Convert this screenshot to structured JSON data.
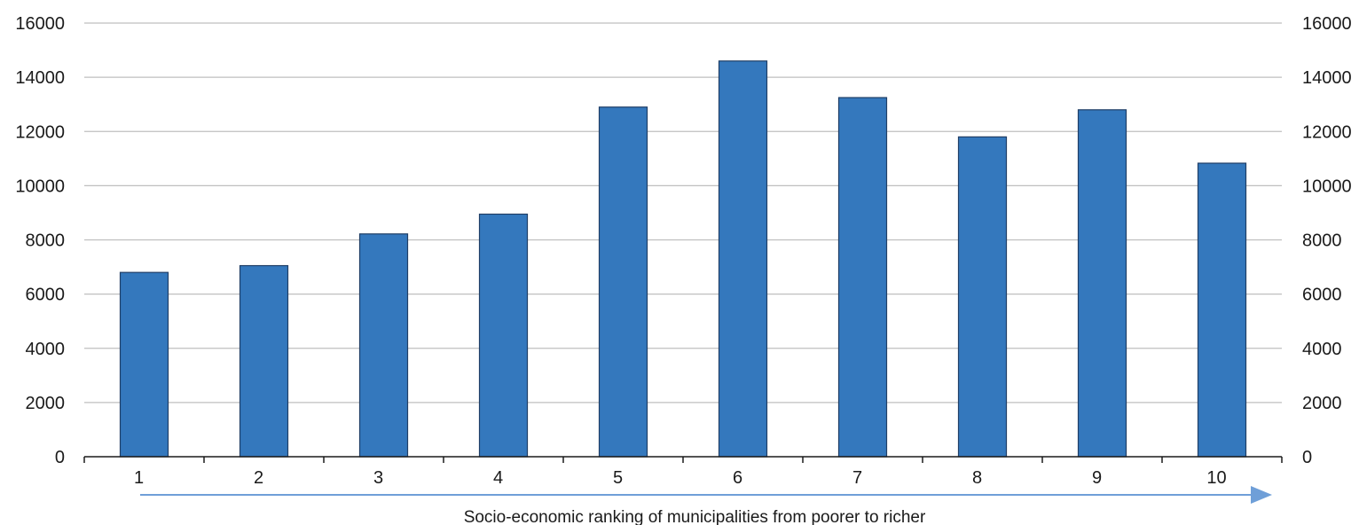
{
  "chart_data": {
    "type": "bar",
    "title": "",
    "xlabel": "Socio-economic ranking of municipalities from poorer to richer",
    "ylabel": "",
    "categories": [
      "1",
      "2",
      "3",
      "4",
      "5",
      "6",
      "7",
      "8",
      "9",
      "10"
    ],
    "values": [
      6800,
      7050,
      8220,
      8950,
      12900,
      14600,
      13250,
      11800,
      12800,
      10830
    ],
    "ylim": [
      0,
      16000
    ],
    "yticks": [
      "0",
      "2000",
      "4000",
      "6000",
      "8000",
      "10000",
      "12000",
      "14000",
      "16000"
    ],
    "y_axis_right": true,
    "grid": true,
    "legend": "none",
    "colors": {
      "bar": "#3478bd",
      "bar_border": "#1f3e66",
      "grid": "#bfbfbf",
      "arrow": "#6f9fd8"
    }
  }
}
